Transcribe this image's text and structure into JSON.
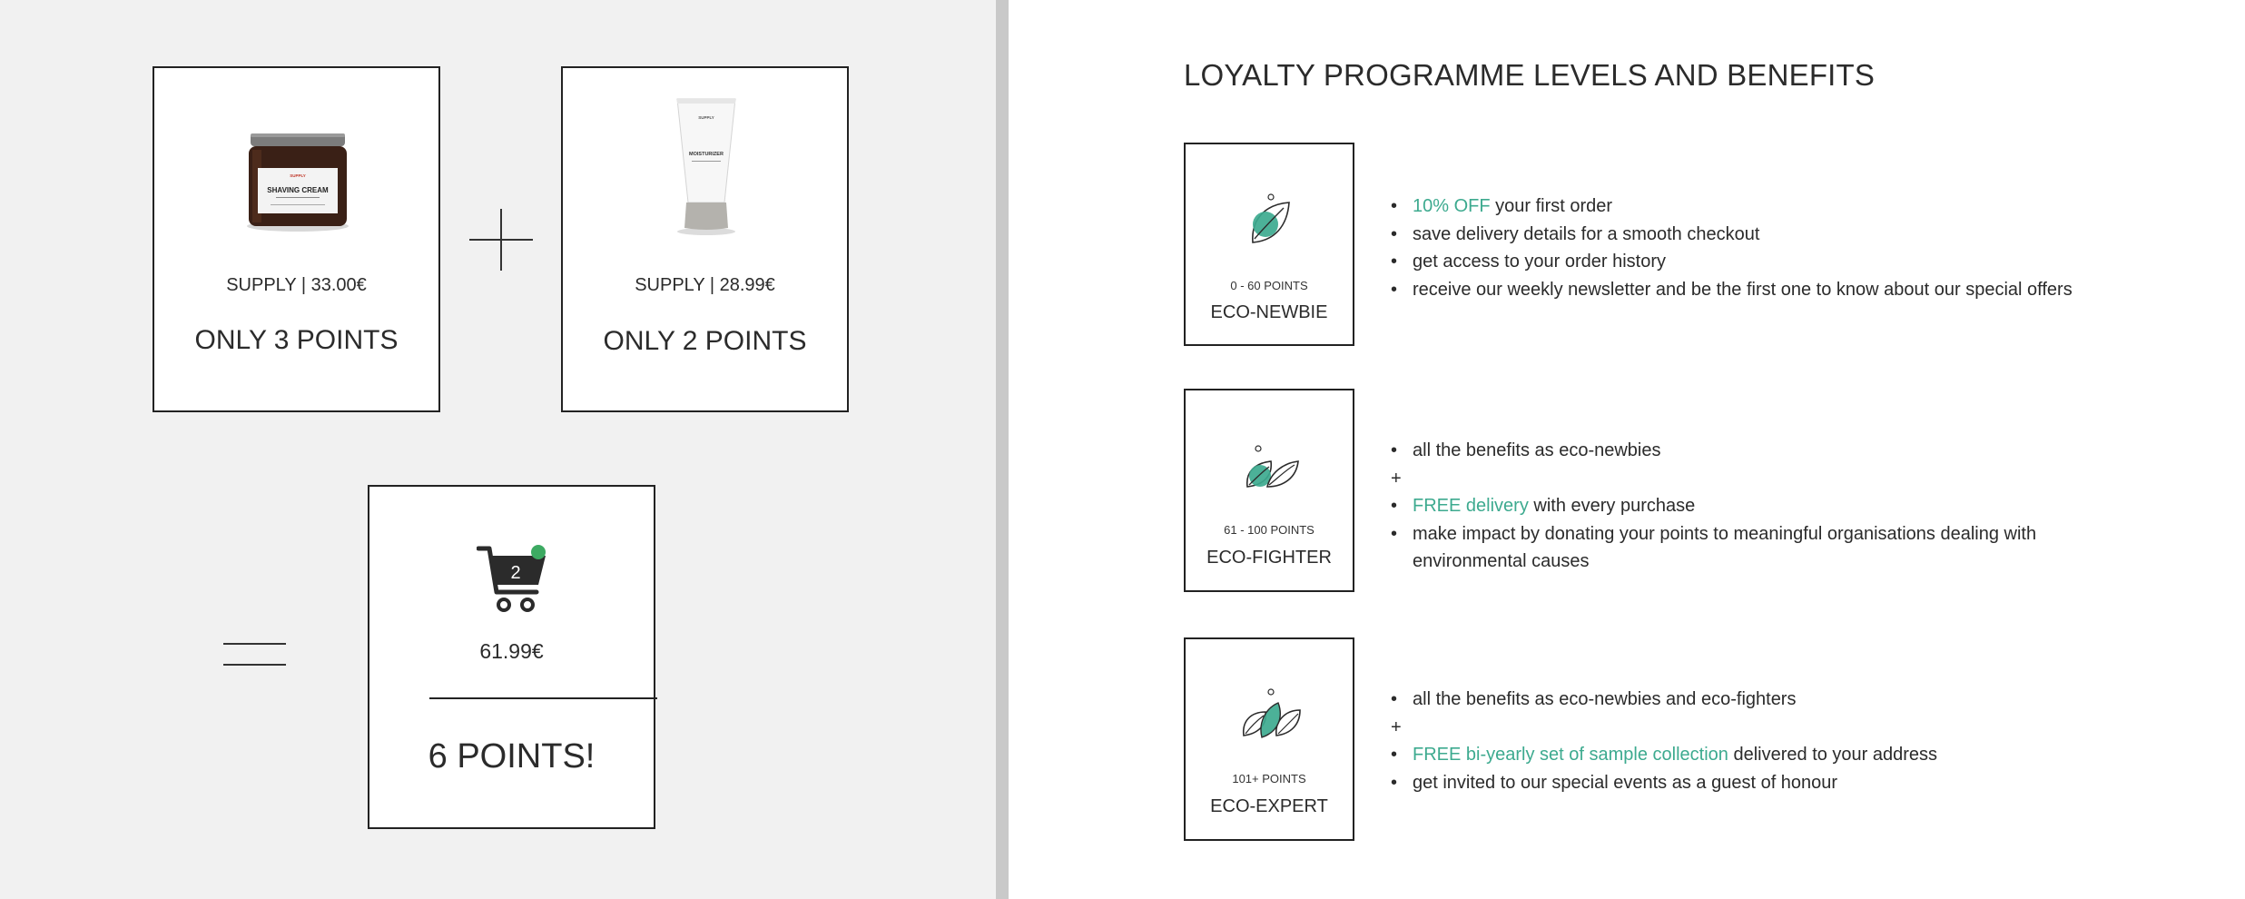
{
  "products": [
    {
      "brand_price": "SUPPLY | 33.00€",
      "points": "ONLY 3 POINTS",
      "image": "shaving-cream-jar",
      "jar_brand": "SUPPLY",
      "jar_label": "SHAVING CREAM"
    },
    {
      "brand_price": "SUPPLY | 28.99€",
      "points": "ONLY 2 POINTS",
      "image": "moisturizer-tube",
      "tube_brand": "SUPPLY",
      "tube_label": "MOISTURIZER"
    }
  ],
  "cart": {
    "count": "2",
    "total": "61.99€",
    "points": "6 POINTS!",
    "icon": "shopping-cart-icon",
    "badge_color": "#3daa62"
  },
  "heading": "LOYALTY PROGRAMME LEVELS AND BENEFITS",
  "accent_color": "#3daa8f",
  "levels": [
    {
      "range": "0 - 60 POINTS",
      "name": "ECO-NEWBIE",
      "icon": "single-leaf-icon",
      "benefits": [
        {
          "type": "item",
          "accent": "10% OFF",
          "text": " your first order"
        },
        {
          "type": "item",
          "accent": "",
          "text": "save delivery details for a smooth checkout"
        },
        {
          "type": "item",
          "accent": "",
          "text": "get access to your order history"
        },
        {
          "type": "item",
          "accent": "",
          "text": "receive our weekly newsletter and be the first one to know about our special offers"
        }
      ]
    },
    {
      "range": "61 - 100 POINTS",
      "name": "ECO-FIGHTER",
      "icon": "two-leaves-icon",
      "benefits": [
        {
          "type": "item",
          "accent": "",
          "text": "all the benefits as eco-newbies"
        },
        {
          "type": "plus",
          "accent": "",
          "text": "+"
        },
        {
          "type": "item",
          "accent": "FREE delivery",
          "text": " with every purchase"
        },
        {
          "type": "item",
          "accent": "",
          "text": "make impact by donating your points to meaningful organisations dealing with environmental causes"
        }
      ]
    },
    {
      "range": "101+ POINTS",
      "name": "ECO-EXPERT",
      "icon": "three-leaves-icon",
      "benefits": [
        {
          "type": "item",
          "accent": "",
          "text": "all the benefits as eco-newbies and eco-fighters"
        },
        {
          "type": "plus",
          "accent": "",
          "text": "+"
        },
        {
          "type": "item",
          "accent": "FREE bi-yearly set of sample collection",
          "text": " delivered to your address"
        },
        {
          "type": "item",
          "accent": "",
          "text": "get invited to our special events as a guest of honour"
        }
      ]
    }
  ]
}
